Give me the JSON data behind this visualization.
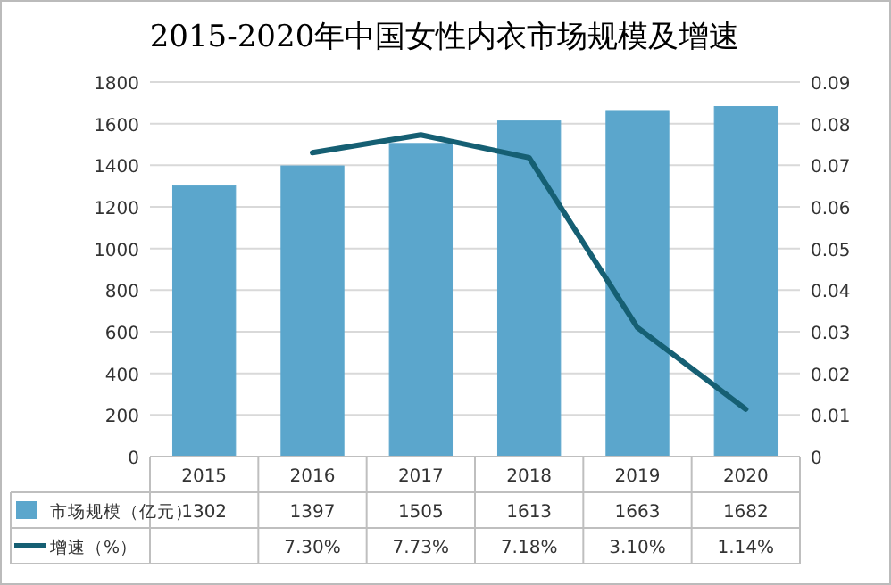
{
  "chart_data": {
    "type": "bar",
    "title": "2015-2020年中国女性内衣市场规模及增速",
    "categories": [
      "2015",
      "2016",
      "2017",
      "2018",
      "2019",
      "2020"
    ],
    "series": [
      {
        "name": "市场规模（亿元）",
        "color": "#5ba6cc",
        "values": [
          1302,
          1397,
          1505,
          1613,
          1663,
          1682
        ],
        "value_labels": [
          "1302",
          "1397",
          "1505",
          "1613",
          "1663",
          "1682"
        ]
      },
      {
        "name": "增速（%）",
        "type": "line",
        "axis": "y2",
        "color": "#155f73",
        "marker": "none",
        "line_style": "solid",
        "values": [
          null,
          0.073,
          0.0773,
          0.0718,
          0.031,
          0.0114
        ],
        "value_labels": [
          null,
          "7.30%",
          "7.73%",
          "7.18%",
          "3.10%",
          "1.14%"
        ]
      }
    ],
    "ylim": [
      0,
      1800
    ],
    "yticks": [
      0,
      200,
      400,
      600,
      800,
      1000,
      1200,
      1400,
      1600,
      1800
    ],
    "y2lim": [
      0,
      0.09
    ],
    "y2ticks": [
      0,
      0.01,
      0.02,
      0.03,
      0.04,
      0.05,
      0.06,
      0.07,
      0.08,
      0.09
    ],
    "grid": "y",
    "legend": "bottom"
  }
}
